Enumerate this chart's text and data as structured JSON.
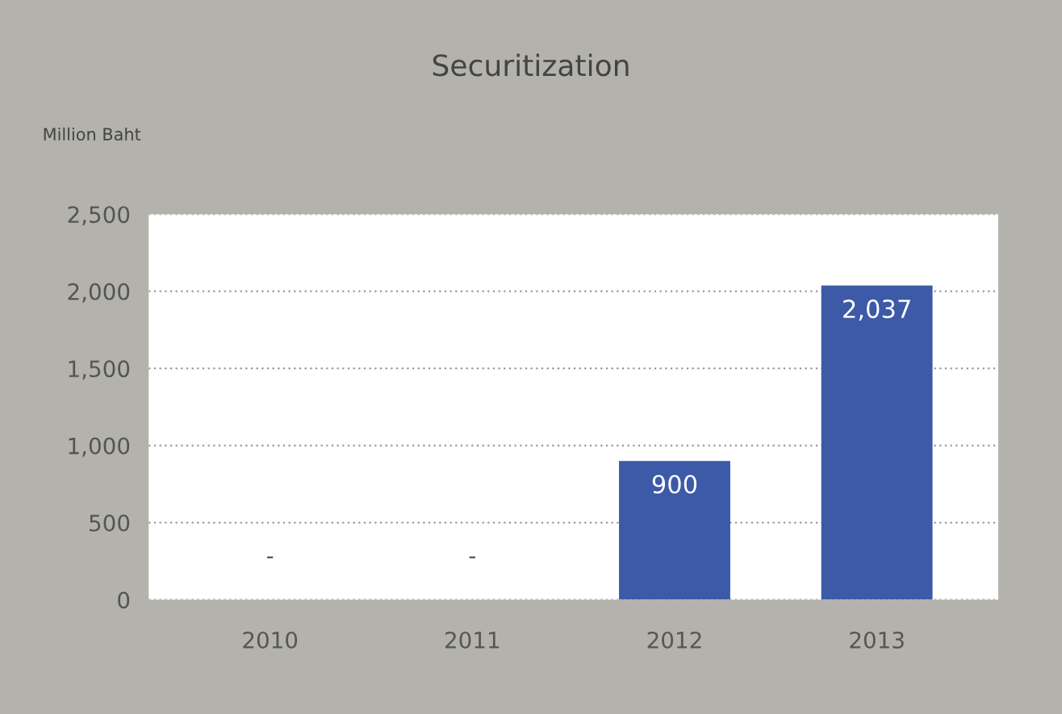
{
  "chart_data": {
    "type": "bar",
    "title": "Securitization",
    "ylabel": "Million Baht",
    "categories": [
      "2010",
      "2011",
      "2012",
      "2013"
    ],
    "values": [
      null,
      null,
      900,
      2037
    ],
    "value_labels": [
      "-",
      "-",
      "900",
      "2,037"
    ],
    "color": "#3d5aa8",
    "ylim": [
      0,
      2500
    ],
    "yticks": [
      0,
      {
        "value": 500,
        "label": "500"
      },
      {
        "value": 1000,
        "label": "1,000"
      },
      {
        "value": 1500,
        "label": "1,500"
      },
      {
        "value": 2000,
        "label": "2,000"
      },
      {
        "value": 2500,
        "label": "2,500"
      }
    ],
    "grid": "y"
  }
}
